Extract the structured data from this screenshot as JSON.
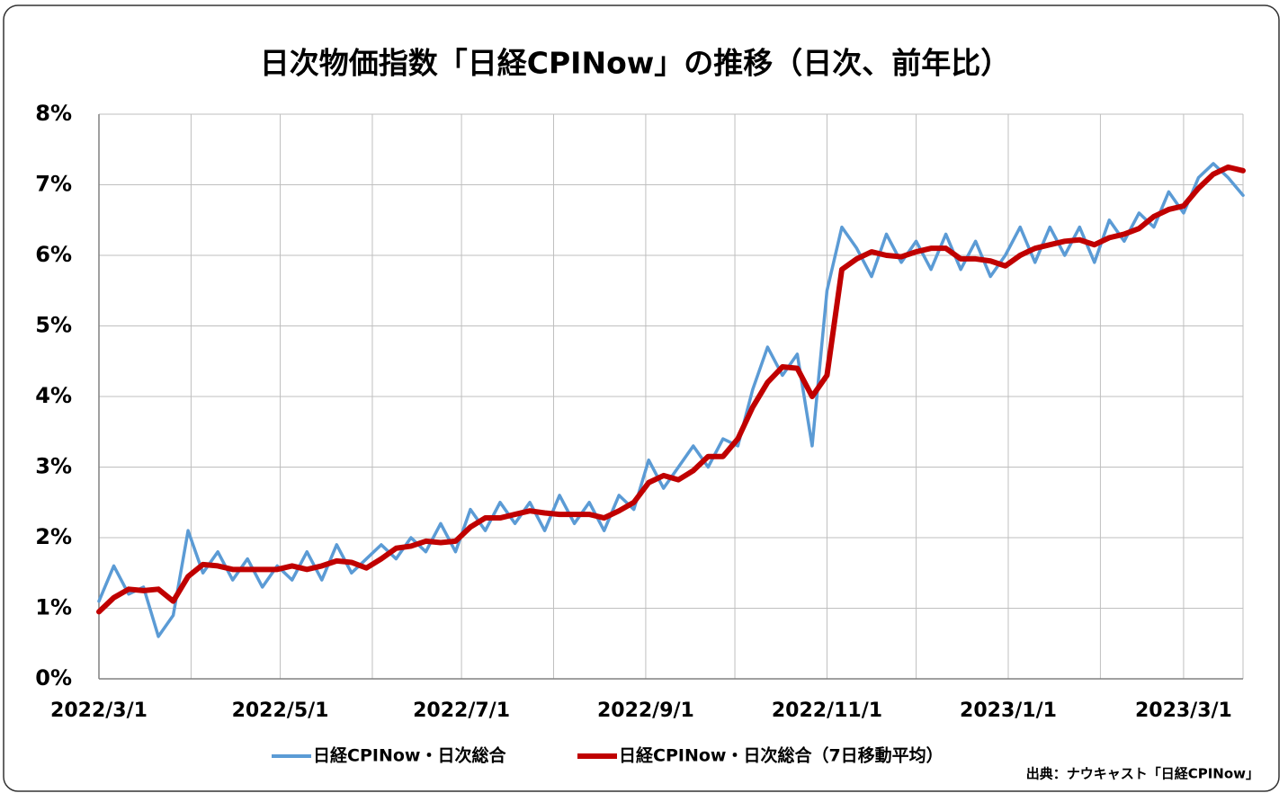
{
  "chart_data": {
    "type": "line",
    "title": "日次物価指数「日経CPINow」の推移（日次、前年比）",
    "source": "出典：ナウキャスト「日経CPINow」",
    "x": [
      "2022/3/1",
      "2022/3/6",
      "2022/3/11",
      "2022/3/16",
      "2022/3/21",
      "2022/3/26",
      "2022/3/31",
      "2022/4/5",
      "2022/4/10",
      "2022/4/15",
      "2022/4/20",
      "2022/4/25",
      "2022/4/30",
      "2022/5/5",
      "2022/5/10",
      "2022/5/15",
      "2022/5/20",
      "2022/5/25",
      "2022/5/30",
      "2022/6/4",
      "2022/6/9",
      "2022/6/14",
      "2022/6/19",
      "2022/6/24",
      "2022/6/29",
      "2022/7/4",
      "2022/7/9",
      "2022/7/14",
      "2022/7/19",
      "2022/7/24",
      "2022/7/29",
      "2022/8/3",
      "2022/8/8",
      "2022/8/13",
      "2022/8/18",
      "2022/8/23",
      "2022/8/28",
      "2022/9/2",
      "2022/9/7",
      "2022/9/12",
      "2022/9/17",
      "2022/9/22",
      "2022/9/27",
      "2022/10/2",
      "2022/10/7",
      "2022/10/12",
      "2022/10/17",
      "2022/10/22",
      "2022/10/27",
      "2022/11/1",
      "2022/11/6",
      "2022/11/11",
      "2022/11/16",
      "2022/11/21",
      "2022/11/26",
      "2022/12/1",
      "2022/12/6",
      "2022/12/11",
      "2022/12/16",
      "2022/12/21",
      "2022/12/26",
      "2022/12/31",
      "2023/1/5",
      "2023/1/10",
      "2023/1/15",
      "2023/1/20",
      "2023/1/25",
      "2023/1/30",
      "2023/2/4",
      "2023/2/9",
      "2023/2/14",
      "2023/2/19",
      "2023/2/24",
      "2023/3/1",
      "2023/3/6",
      "2023/3/11",
      "2023/3/16",
      "2023/3/21"
    ],
    "series": [
      {
        "name": "日経CPINow・日次総合",
        "color": "#5b9bd5",
        "values": [
          1.1,
          1.6,
          1.2,
          1.3,
          0.6,
          0.9,
          2.1,
          1.5,
          1.8,
          1.4,
          1.7,
          1.3,
          1.6,
          1.4,
          1.8,
          1.4,
          1.9,
          1.5,
          1.7,
          1.9,
          1.7,
          2.0,
          1.8,
          2.2,
          1.8,
          2.4,
          2.1,
          2.5,
          2.2,
          2.5,
          2.1,
          2.6,
          2.2,
          2.5,
          2.1,
          2.6,
          2.4,
          3.1,
          2.7,
          3.0,
          3.3,
          3.0,
          3.4,
          3.3,
          4.1,
          4.7,
          4.3,
          4.6,
          3.3,
          5.5,
          6.4,
          6.1,
          5.7,
          6.3,
          5.9,
          6.2,
          5.8,
          6.3,
          5.8,
          6.2,
          5.7,
          6.0,
          6.4,
          5.9,
          6.4,
          6.0,
          6.4,
          5.9,
          6.5,
          6.2,
          6.6,
          6.4,
          6.9,
          6.6,
          7.1,
          7.3,
          7.1,
          6.85
        ]
      },
      {
        "name": "日経CPINow・日次総合（7日移動平均）",
        "color": "#c00000",
        "values": [
          0.95,
          1.15,
          1.27,
          1.25,
          1.27,
          1.1,
          1.45,
          1.62,
          1.6,
          1.55,
          1.55,
          1.55,
          1.55,
          1.6,
          1.55,
          1.6,
          1.67,
          1.65,
          1.57,
          1.7,
          1.85,
          1.88,
          1.95,
          1.93,
          1.95,
          2.15,
          2.28,
          2.28,
          2.33,
          2.38,
          2.35,
          2.33,
          2.33,
          2.33,
          2.28,
          2.38,
          2.5,
          2.78,
          2.88,
          2.82,
          2.95,
          3.15,
          3.15,
          3.4,
          3.85,
          4.2,
          4.42,
          4.4,
          4.0,
          4.3,
          5.8,
          5.95,
          6.05,
          6.0,
          5.98,
          6.05,
          6.1,
          6.1,
          5.95,
          5.95,
          5.92,
          5.85,
          6.0,
          6.1,
          6.15,
          6.2,
          6.22,
          6.15,
          6.25,
          6.3,
          6.38,
          6.55,
          6.65,
          6.7,
          6.95,
          7.15,
          7.25,
          7.2
        ]
      }
    ],
    "xlim": [
      "2022/3/1",
      "2023/3/21"
    ],
    "xticks": [
      "2022/3/1",
      "2022/5/1",
      "2022/7/1",
      "2022/9/1",
      "2022/11/1",
      "2023/1/1",
      "2023/3/1"
    ],
    "xgrid": [
      "2022/4/1",
      "2022/6/1",
      "2022/8/1",
      "2022/10/1",
      "2022/12/1",
      "2023/2/1"
    ],
    "ylim": [
      0,
      8
    ],
    "yticks": [
      {
        "value": 0,
        "label": "0%"
      },
      {
        "value": 1,
        "label": "1%"
      },
      {
        "value": 2,
        "label": "2%"
      },
      {
        "value": 3,
        "label": "3%"
      },
      {
        "value": 4,
        "label": "4%"
      },
      {
        "value": 5,
        "label": "5%"
      },
      {
        "value": 6,
        "label": "6%"
      },
      {
        "value": 7,
        "label": "7%"
      },
      {
        "value": 8,
        "label": "8%"
      }
    ],
    "grid": true,
    "legend": "bottom"
  }
}
